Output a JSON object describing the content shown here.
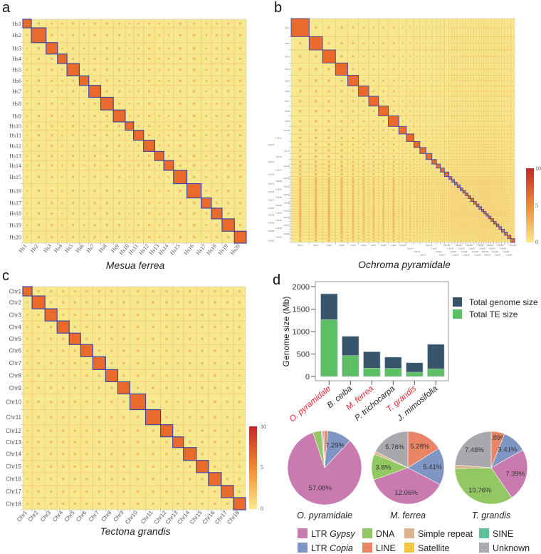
{
  "panels": {
    "a": "a",
    "b": "b",
    "c": "c",
    "d": "d"
  },
  "colorbar": {
    "max": "10",
    "mid": "5",
    "min": "0"
  },
  "colors": {
    "background": "#f7e88e",
    "block": "#ea6a2c",
    "outline": "#3f4aa6",
    "contact": "#ee8a3a",
    "cb_low": "#fbe98e",
    "cb_mid": "#ef8a32",
    "cb_high": "#c3272a"
  },
  "chart_data": [
    {
      "type": "heatmap",
      "title": "Mesua ferrea",
      "labels": [
        "Hs1",
        "Hs2",
        "Hs3",
        "Hs4",
        "Hs5",
        "Hs6",
        "Hs7",
        "Hs8",
        "Hs9",
        "Hs10",
        "Hs11",
        "Hs12",
        "Hs13",
        "Hs14",
        "Hs15",
        "Hs16",
        "Hs17",
        "Hs18",
        "Hs19",
        "Hs20"
      ],
      "relative_lengths": [
        12,
        20.7,
        16,
        13.3,
        17.3,
        13.3,
        16.7,
        17.7,
        16.7,
        11.7,
        14,
        15.7,
        12.7,
        13.7,
        18.7,
        20,
        14.3,
        15,
        17.3,
        16.7
      ],
      "color_range": [
        0,
        10
      ]
    },
    {
      "type": "heatmap",
      "title": "Ochroma pyramidale",
      "labels": [
        "Chr1",
        "Chr2",
        "Chr3",
        "Chr4",
        "Chr5",
        "Chr6",
        "Chr7",
        "Chr8",
        "Chr9",
        "Chr10",
        "Chr11",
        "Chr12",
        "Chr13",
        "Chr14",
        "Chr15",
        "Chr16",
        "Chr17",
        "Chr18",
        "Chr19",
        "Chr20",
        "Chr21",
        "Chr22",
        "Chr23",
        "Chr24",
        "Chr25",
        "Chr26",
        "Chr27",
        "Chr28",
        "Chr29",
        "Chr30",
        "Chr31",
        "Chr32",
        "Chr33",
        "Chr34",
        "Chr35",
        "Chr36",
        "Chr37",
        "Chr38",
        "Chr39",
        "Chr40",
        "Chr41",
        "Chr42"
      ],
      "relative_lengths": [
        24,
        17.7,
        17.3,
        16.3,
        14.3,
        13.7,
        13,
        13,
        14,
        10,
        10,
        8,
        8,
        8,
        6,
        5.3,
        5.3,
        6,
        4,
        3.5,
        3.5,
        4,
        3.5,
        3.5,
        3.5,
        3.5,
        4,
        3.5,
        3.5,
        3.5,
        3,
        3,
        3,
        3.5,
        3.5,
        3.5,
        3.5,
        3.5,
        4,
        4,
        4.5,
        5
      ],
      "color_range": [
        0,
        10
      ]
    },
    {
      "type": "heatmap",
      "title": "Tectona grandis",
      "labels": [
        "Chr1",
        "Chr2",
        "Chr3",
        "Chr4",
        "Chr5",
        "Chr6",
        "Chr7",
        "Chr8",
        "Chr9",
        "Chr10",
        "Chr11",
        "Chr12",
        "Chr13",
        "Chr14",
        "Chr15",
        "Chr16",
        "Chr17",
        "Chr18"
      ],
      "relative_lengths": [
        13,
        18,
        17,
        17,
        16,
        17,
        18,
        17,
        17,
        22,
        21,
        17,
        15,
        18,
        17,
        18,
        17,
        17
      ],
      "color_range": [
        0,
        10
      ]
    },
    {
      "type": "bar",
      "stacked": false,
      "categories": [
        "O. pyramidale",
        "B. ceiba",
        "M. ferrea",
        "P. trichocarpa",
        "T. grandis",
        "J. mimosifolia"
      ],
      "highlighted": [
        true,
        false,
        true,
        false,
        true,
        false
      ],
      "highlight_color": "#e8202a",
      "series": [
        {
          "name": "Total genome size",
          "color": "#36556b",
          "values": [
            1840,
            895,
            550,
            430,
            305,
            715
          ]
        },
        {
          "name": "Total TE size",
          "color": "#5cbf63",
          "values": [
            1265,
            465,
            185,
            180,
            95,
            170
          ]
        }
      ],
      "ylabel": "Genome size (Mb)",
      "yticks": [
        0,
        500,
        1000,
        1500,
        2000
      ],
      "ylim": [
        0,
        2070
      ]
    },
    {
      "type": "pie",
      "pies": [
        {
          "title": "O. pyramidale",
          "slices": [
            {
              "cat": "LINE",
              "value": 1.0,
              "label": ""
            },
            {
              "cat": "Copia",
              "value": 7.29,
              "label": "7.29%"
            },
            {
              "cat": "Gypsy",
              "value": 57.08,
              "label": "57.08%"
            },
            {
              "cat": "DNA",
              "value": 2.5,
              "label": ""
            },
            {
              "cat": "Simple",
              "value": 0.5,
              "label": ""
            },
            {
              "cat": "Unknown",
              "value": 0.5,
              "label": ""
            }
          ]
        },
        {
          "title": "M. ferrea",
          "slices": [
            {
              "cat": "LINE",
              "value": 5.28,
              "label": "5.28%"
            },
            {
              "cat": "Copia",
              "value": 5.41,
              "label": "5.41%"
            },
            {
              "cat": "Gypsy",
              "value": 12.06,
              "label": "12.06%"
            },
            {
              "cat": "DNA",
              "value": 3.8,
              "label": "3.8%"
            },
            {
              "cat": "Simple",
              "value": 0.4,
              "label": ""
            },
            {
              "cat": "Unknown",
              "value": 5.76,
              "label": "5.76%"
            }
          ]
        },
        {
          "title": "T. grandis",
          "slices": [
            {
              "cat": "LINE",
              "value": 1.89,
              "label": "1.89%"
            },
            {
              "cat": "Copia",
              "value": 3.41,
              "label": "3.41%"
            },
            {
              "cat": "Gypsy",
              "value": 7.39,
              "label": "7.39%"
            },
            {
              "cat": "DNA",
              "value": 10.76,
              "label": "10.76%"
            },
            {
              "cat": "Simple",
              "value": 0.5,
              "label": ""
            },
            {
              "cat": "Unknown",
              "value": 7.48,
              "label": "7.48%"
            }
          ]
        }
      ],
      "legend": [
        {
          "cat": "Gypsy",
          "prefix": "LTR ",
          "italic": "Gypsy",
          "color": "#c97bb0"
        },
        {
          "cat": "DNA",
          "prefix": "DNA",
          "italic": "",
          "color": "#93c763"
        },
        {
          "cat": "Simple",
          "prefix": "Simple repeat",
          "italic": "",
          "color": "#dcb48f"
        },
        {
          "cat": "SINE",
          "prefix": "SINE",
          "italic": "",
          "color": "#5fbf9a"
        },
        {
          "cat": "Copia",
          "prefix": "LTR ",
          "italic": "Copia",
          "color": "#7f95c4"
        },
        {
          "cat": "LINE",
          "prefix": "LINE",
          "italic": "",
          "color": "#e98564"
        },
        {
          "cat": "Satellite",
          "prefix": "Satellite",
          "italic": "",
          "color": "#f2c744"
        },
        {
          "cat": "Unknown",
          "prefix": "Unknown",
          "italic": "",
          "color": "#a9a9ad"
        }
      ]
    }
  ]
}
